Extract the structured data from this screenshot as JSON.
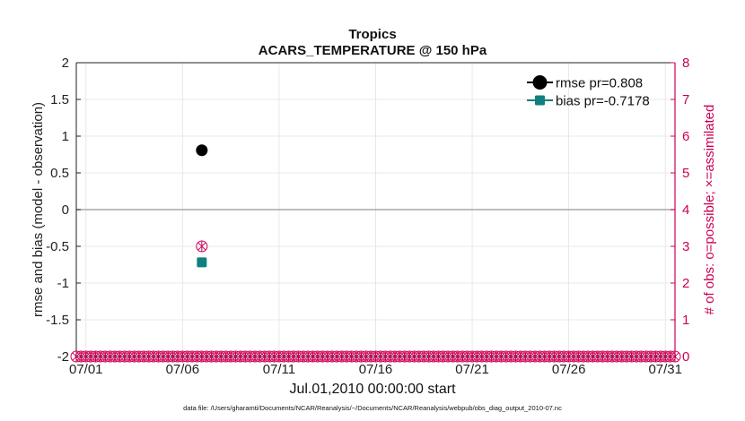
{
  "chart_data": {
    "type": "scatter",
    "title": "Tropics",
    "subtitle": "ACARS_TEMPERATURE @ 150 hPa",
    "xlabel": "Jul.01,2010 00:00:00 start",
    "ylabel": "rmse and bias (model - observation)",
    "ylabel_right": "# of obs: o=possible; ×=assimilated",
    "footer": "data file: /Users/gharamti/Documents/NCAR/Reanalysis/~/Documents/NCAR/Reanalysis/webpub/obs_diag_output_2010-07.nc",
    "xlim": [
      0.5,
      31.5
    ],
    "ylim": [
      -2,
      2
    ],
    "ylim_right": [
      0,
      8
    ],
    "x_ticks": [
      1,
      6,
      11,
      16,
      21,
      26,
      31
    ],
    "x_tick_labels": [
      "07/01",
      "07/06",
      "07/11",
      "07/16",
      "07/21",
      "07/26",
      "07/31"
    ],
    "y_ticks": [
      -2,
      -1.5,
      -1,
      -0.5,
      0,
      0.5,
      1,
      1.5,
      2
    ],
    "y_tick_labels": [
      "-2",
      "-1.5",
      "-1",
      "-0.5",
      "0",
      "0.5",
      "1",
      "1.5",
      "2"
    ],
    "y_ticks_right": [
      0,
      1,
      2,
      3,
      4,
      5,
      6,
      7,
      8
    ],
    "y_tick_labels_right": [
      "0",
      "1",
      "2",
      "3",
      "4",
      "5",
      "6",
      "7",
      "8"
    ],
    "grid": true,
    "legend_position": "top-right",
    "series": [
      {
        "name": "rmse pr=0.808",
        "marker": "filled-circle",
        "color": "#000000",
        "points": [
          {
            "x": 7,
            "y": 0.808
          }
        ]
      },
      {
        "name": "bias pr=-0.7178",
        "marker": "filled-square",
        "color": "#0f7f7f",
        "points": [
          {
            "x": 7,
            "y": -0.7178
          }
        ]
      }
    ],
    "obs_count": {
      "axis": "right",
      "color": "#cc0055",
      "x_start": 0.5,
      "x_end": 31.5,
      "step": 0.25,
      "default_value": 0,
      "nonzero": [
        {
          "x": 7,
          "possible": 3,
          "assimilated": 3
        }
      ]
    }
  }
}
